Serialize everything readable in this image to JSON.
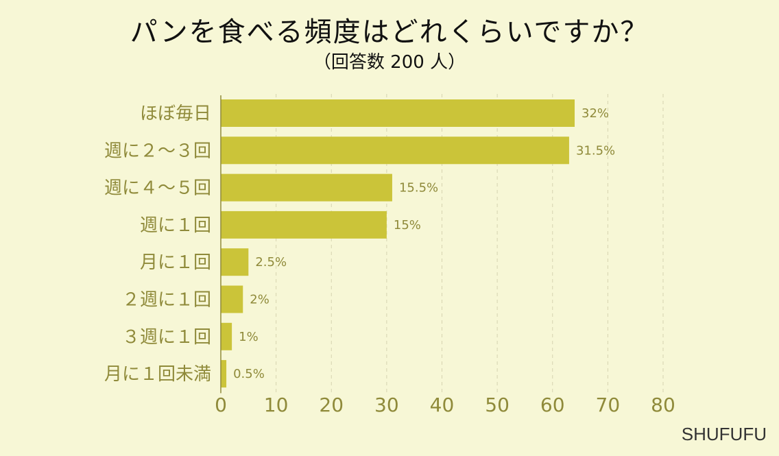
{
  "chart_data": {
    "type": "bar",
    "orientation": "horizontal",
    "title": "パンを食べる頻度はどれくらいですか？",
    "subtitle": "（回答数 200 人）",
    "categories": [
      "ほぼ毎日",
      "週に２～３回",
      "週に４～５回",
      "週に１回",
      "月に１回",
      "２週に１回",
      "３週に１回",
      "月に１回未満"
    ],
    "series": [
      {
        "values": [
          64,
          63,
          31,
          30,
          5,
          4,
          2,
          1
        ],
        "labels": [
          "32%",
          "31.5%",
          "15.5%",
          "15%",
          "2.5%",
          "2%",
          "1%",
          "0.5%"
        ]
      }
    ],
    "xlim": [
      0,
      80
    ],
    "xticks": [
      0,
      10,
      20,
      30,
      40,
      50,
      60,
      70,
      80
    ],
    "grid": true,
    "bar_color": "#cbc439",
    "label_color": "#8f8a3a"
  },
  "brand": "SHUFUFU"
}
